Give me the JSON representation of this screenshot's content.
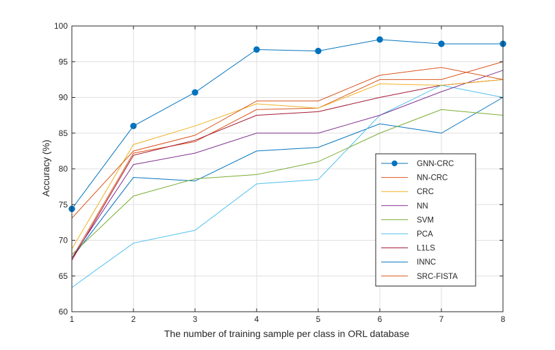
{
  "chart_data": {
    "type": "line",
    "title": "",
    "xlabel": "The number of training sample per class in ORL database",
    "ylabel": "Accuracy (%)",
    "x": [
      1,
      2,
      3,
      4,
      5,
      6,
      7,
      8
    ],
    "xlim": [
      1,
      8
    ],
    "ylim": [
      60,
      100
    ],
    "xticks": [
      "1",
      "2",
      "3",
      "4",
      "5",
      "6",
      "7",
      "8"
    ],
    "yticks": [
      "60",
      "65",
      "70",
      "75",
      "80",
      "85",
      "90",
      "95",
      "100"
    ],
    "grid": true,
    "legend_position": "right",
    "series": [
      {
        "name": "GNN-CRC",
        "color": "#0072BD",
        "marker": "circle",
        "values": [
          74.4,
          86.0,
          90.7,
          96.7,
          96.5,
          98.1,
          97.5,
          97.5
        ]
      },
      {
        "name": "NN-CRC",
        "color": "#D95319",
        "marker": "none",
        "values": [
          73.1,
          82.5,
          84.7,
          89.5,
          89.5,
          93.1,
          94.2,
          92.5
        ]
      },
      {
        "name": "CRC",
        "color": "#EDB120",
        "marker": "none",
        "values": [
          68.8,
          83.4,
          86.0,
          89.1,
          88.5,
          91.9,
          91.7,
          92.5
        ]
      },
      {
        "name": "NN",
        "color": "#7E2F8E",
        "marker": "none",
        "values": [
          67.5,
          80.6,
          82.2,
          85.0,
          85.0,
          87.5,
          90.8,
          93.8
        ]
      },
      {
        "name": "SVM",
        "color": "#77AC30",
        "marker": "none",
        "values": [
          68.0,
          76.2,
          78.6,
          79.2,
          81.0,
          85.0,
          88.3,
          87.5
        ]
      },
      {
        "name": "PCA",
        "color": "#4DBEEE",
        "marker": "none",
        "values": [
          63.4,
          69.6,
          71.4,
          77.9,
          78.5,
          87.5,
          91.7,
          90.0
        ]
      },
      {
        "name": "L1LS",
        "color": "#A2142F",
        "marker": "none",
        "values": [
          67.2,
          81.9,
          84.0,
          87.5,
          88.0,
          90.0,
          91.7,
          92.5
        ]
      },
      {
        "name": "INNC",
        "color": "#0072BD",
        "marker": "none",
        "values": [
          67.5,
          78.8,
          78.3,
          82.5,
          83.0,
          86.3,
          85.0,
          90.0
        ]
      },
      {
        "name": "SRC-FISTA",
        "color": "#D95319",
        "marker": "none",
        "values": [
          67.5,
          82.2,
          83.8,
          88.3,
          88.5,
          92.5,
          92.5,
          95.0
        ]
      }
    ]
  }
}
